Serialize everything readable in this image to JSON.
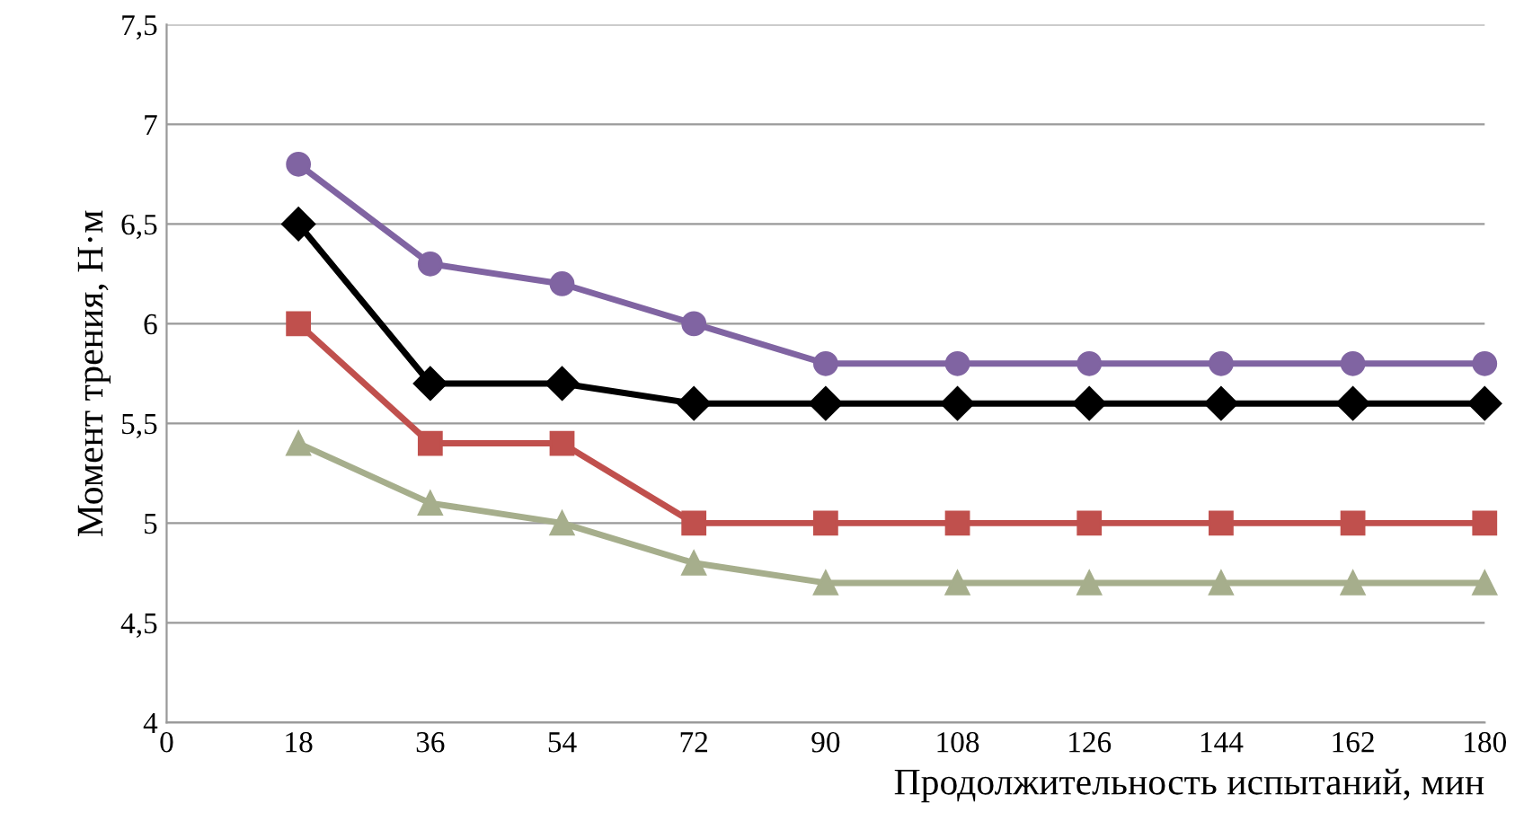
{
  "chart_data": {
    "type": "line",
    "xlabel": "Продолжительность испытаний, мин",
    "ylabel": "Момент трения, Н·м",
    "x": [
      18,
      36,
      54,
      72,
      90,
      108,
      126,
      144,
      162,
      180
    ],
    "series": [
      {
        "color": "#8064a2",
        "marker": "circle",
        "values": [
          6.8,
          6.3,
          6.2,
          6.0,
          5.8,
          5.8,
          5.8,
          5.8,
          5.8,
          5.8
        ]
      },
      {
        "color": "#000000",
        "marker": "diamond",
        "values": [
          6.5,
          5.7,
          5.7,
          5.6,
          5.6,
          5.6,
          5.6,
          5.6,
          5.6,
          5.6
        ]
      },
      {
        "color": "#c0504d",
        "marker": "square",
        "values": [
          6.0,
          5.4,
          5.4,
          5.0,
          5.0,
          5.0,
          5.0,
          5.0,
          5.0,
          5.0
        ]
      },
      {
        "color": "#a6ae8c",
        "marker": "triangle",
        "values": [
          5.4,
          5.1,
          5.0,
          4.8,
          4.7,
          4.7,
          4.7,
          4.7,
          4.7,
          4.7
        ]
      }
    ],
    "xlim": [
      0,
      180
    ],
    "xticks": [
      0,
      18,
      36,
      54,
      72,
      90,
      108,
      126,
      144,
      162,
      180
    ],
    "ylim": [
      4,
      7.5
    ],
    "yticks": [
      4,
      {
        "value": 4.5,
        "label": "4,5"
      },
      5,
      {
        "value": 5.5,
        "label": "5,5"
      },
      6,
      {
        "value": 6.5,
        "label": "6,5"
      },
      7,
      {
        "value": 7.5,
        "label": "7,5"
      }
    ],
    "grid": "y",
    "legend": false,
    "line_style": "solid"
  }
}
